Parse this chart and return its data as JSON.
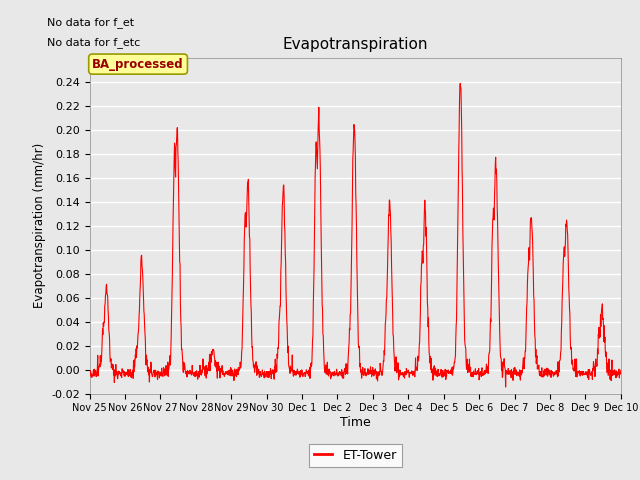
{
  "title": "Evapotranspiration",
  "xlabel": "Time",
  "ylabel": "Evapotranspiration (mm/hr)",
  "ylim": [
    -0.02,
    0.26
  ],
  "yticks": [
    -0.02,
    0.0,
    0.02,
    0.04,
    0.06,
    0.08,
    0.1,
    0.12,
    0.14,
    0.16,
    0.18,
    0.2,
    0.22,
    0.24
  ],
  "line_color": "#ff0000",
  "line_width": 0.8,
  "fig_facecolor": "#e8e8e8",
  "plot_facecolor": "#e8e8e8",
  "legend_label": "ET-Tower",
  "legend_box_facecolor": "#ffff99",
  "legend_box_edgecolor": "#999900",
  "legend_text": "BA_processed",
  "annotation1": "No data for f_et",
  "annotation2": "No data for f_etc",
  "tick_labels": [
    "Nov 25",
    "Nov 26",
    "Nov 27",
    "Nov 28",
    "Nov 29",
    "Nov 30",
    "Dec 1",
    "Dec 2",
    "Dec 3",
    "Dec 4",
    "Dec 5",
    "Dec 6",
    "Dec 7",
    "Dec 8",
    "Dec 9",
    "Dec 10"
  ],
  "figsize": [
    6.4,
    4.8
  ],
  "dpi": 100
}
